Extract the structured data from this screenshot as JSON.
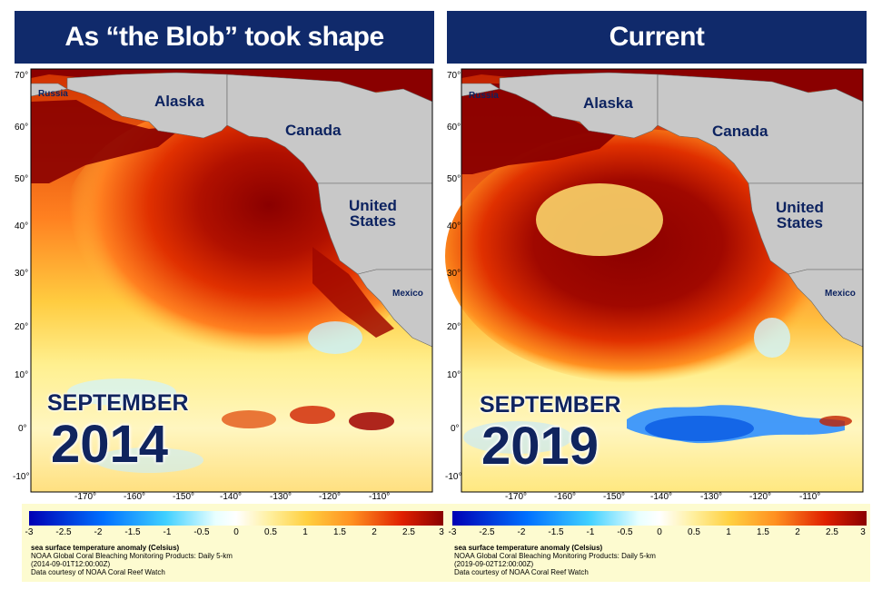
{
  "panels": [
    {
      "title": "As “the Blob” took shape",
      "month": "SEPTEMBER",
      "year": "2014",
      "timestamp": "(2014-09-01T12:00:00Z)"
    },
    {
      "title": "Current",
      "month": "SEPTEMBER",
      "year": "2019",
      "timestamp": "(2019-09-02T12:00:00Z)"
    }
  ],
  "places": {
    "russia": "Russia",
    "alaska": "Alaska",
    "canada": "Canada",
    "united_states_1": "United",
    "united_states_2": "States",
    "mexico": "Mexico"
  },
  "lat_labels": [
    "70°",
    "60°",
    "50°",
    "40°",
    "30°",
    "20°",
    "10°",
    "0°",
    "-10°"
  ],
  "lon_labels": [
    "-170°",
    "-160°",
    "-150°",
    "-140°",
    "-130°",
    "-120°",
    "-110°"
  ],
  "legend": {
    "ticks": [
      "-3",
      "-2.5",
      "-2",
      "-1.5",
      "-1",
      "-0.5",
      "0",
      "0.5",
      "1",
      "1.5",
      "2",
      "2.5",
      "3"
    ],
    "line1": "sea surface temperature anomaly (Celsius)",
    "line2": "NOAA Global Coral Bleaching Monitoring Products: Daily 5-km",
    "line4": "Data courtesy of NOAA Coral Reef Watch"
  },
  "colors": {
    "header_bg": "#102a6b",
    "land": "#c8c8c8",
    "label_text": "#10245e",
    "legend_bg": "#fdfbd0"
  }
}
